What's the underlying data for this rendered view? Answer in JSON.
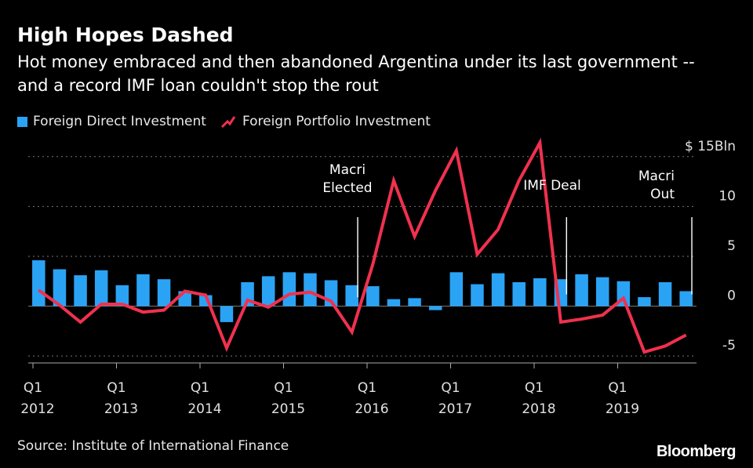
{
  "header": {
    "title": "High Hopes Dashed",
    "subtitle": "Hot money embraced and then abandoned Argentina under its last government -- and a record IMF loan couldn't stop the rout"
  },
  "colors": {
    "background": "#000000",
    "fdi_bar": "#2aa3f5",
    "portfolio_line": "#f0314f",
    "grid": "#777777",
    "text": "#ffffff"
  },
  "chart_data": {
    "type": "bar",
    "categories": [
      "Q1 2012",
      "Q2 2012",
      "Q3 2012",
      "Q4 2012",
      "Q1 2013",
      "Q2 2013",
      "Q3 2013",
      "Q4 2013",
      "Q1 2014",
      "Q2 2014",
      "Q3 2014",
      "Q4 2014",
      "Q1 2015",
      "Q2 2015",
      "Q3 2015",
      "Q4 2015",
      "Q1 2016",
      "Q2 2016",
      "Q3 2016",
      "Q4 2016",
      "Q1 2017",
      "Q2 2017",
      "Q3 2017",
      "Q4 2017",
      "Q1 2018",
      "Q2 2018",
      "Q3 2018",
      "Q4 2018",
      "Q1 2019",
      "Q2 2019",
      "Q3 2019",
      "Q4 2019"
    ],
    "series": [
      {
        "name": "Foreign Direct Investment",
        "type": "bar",
        "values": [
          4.6,
          3.7,
          3.1,
          3.6,
          2.1,
          3.2,
          2.7,
          1.5,
          1.1,
          -1.6,
          2.4,
          3.0,
          3.4,
          3.3,
          2.6,
          2.1,
          2.0,
          0.7,
          0.8,
          -0.4,
          3.4,
          2.2,
          3.3,
          2.4,
          2.8,
          2.7,
          3.2,
          2.9,
          2.5,
          0.9,
          2.4,
          1.5
        ]
      },
      {
        "name": "Foreign Portfolio Investment",
        "type": "line",
        "values": [
          1.6,
          0.1,
          -1.6,
          0.2,
          0.2,
          -0.6,
          -0.4,
          1.5,
          1.1,
          -4.2,
          0.6,
          -0.1,
          1.2,
          1.4,
          0.5,
          -2.6,
          4.2,
          12.6,
          7.0,
          11.6,
          15.6,
          5.2,
          7.7,
          12.6,
          16.4,
          -1.6,
          -1.3,
          -0.9,
          0.8,
          -4.6,
          -4.0,
          -2.9
        ]
      }
    ],
    "x_ticks": [
      {
        "index": 0,
        "q": "Q1",
        "year": "2012"
      },
      {
        "index": 4,
        "q": "Q1",
        "year": "2013"
      },
      {
        "index": 8,
        "q": "Q1",
        "year": "2014"
      },
      {
        "index": 12,
        "q": "Q1",
        "year": "2015"
      },
      {
        "index": 16,
        "q": "Q1",
        "year": "2016"
      },
      {
        "index": 20,
        "q": "Q1",
        "year": "2017"
      },
      {
        "index": 24,
        "q": "Q1",
        "year": "2018"
      },
      {
        "index": 28,
        "q": "Q1",
        "year": "2019"
      }
    ],
    "y_ticks": [
      {
        "value": 15,
        "label": "$ 15Bln"
      },
      {
        "value": 10,
        "label": "10"
      },
      {
        "value": 5,
        "label": "5"
      },
      {
        "value": 0,
        "label": "0"
      },
      {
        "value": -5,
        "label": "-5"
      }
    ],
    "ylim": [
      -5.7,
      16.4
    ],
    "y_axis_side": "right",
    "grid": true,
    "legend_position": "top-left",
    "annotations": [
      {
        "lines": [
          "Macri",
          "Elected"
        ],
        "x_index": 15,
        "value": 2.3
      },
      {
        "lines": [
          "IMF Deal"
        ],
        "x_index": 25,
        "value": 2.6
      },
      {
        "lines": [
          "Macri",
          "Out"
        ],
        "x_index": 31,
        "value": 2.6
      }
    ]
  },
  "footer": {
    "source": "Source: Institute of International Finance",
    "logo": "Bloomberg"
  }
}
